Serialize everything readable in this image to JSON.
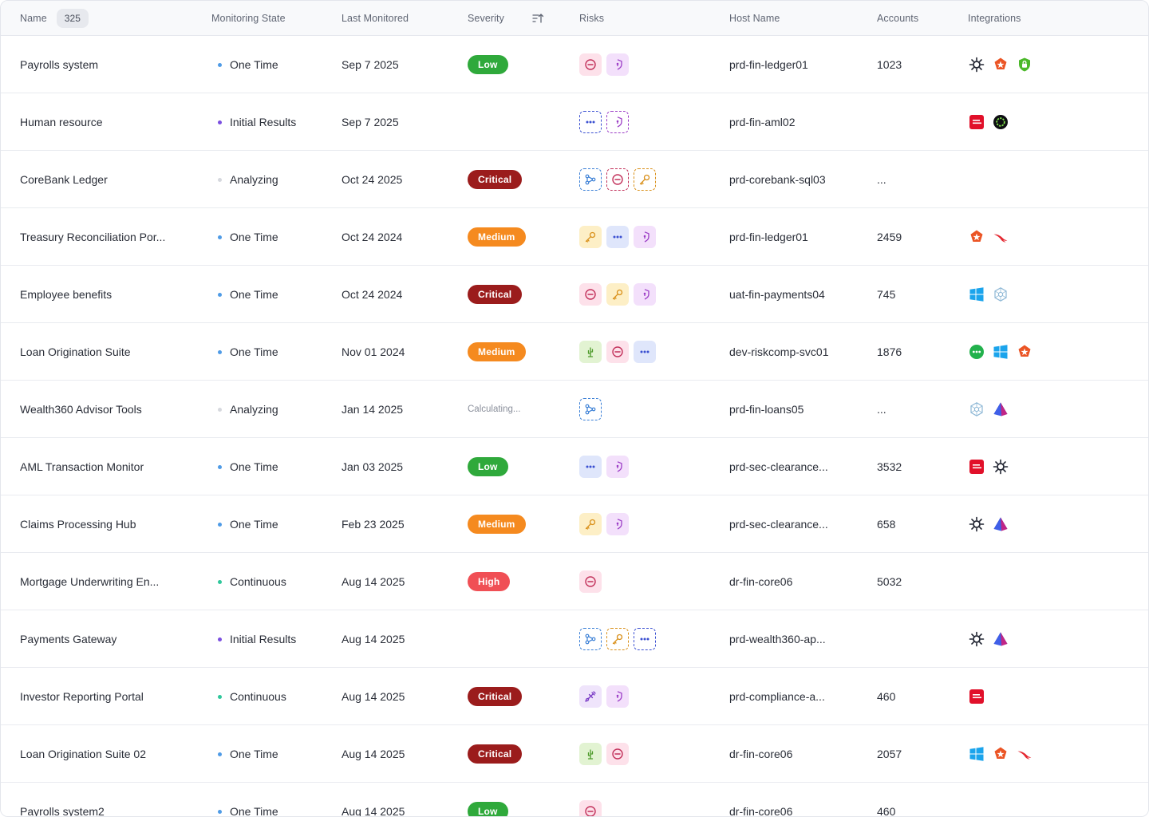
{
  "header": {
    "name": "Name",
    "count": "325",
    "monitoring_state": "Monitoring State",
    "last_monitored": "Last Monitored",
    "severity": "Severity",
    "risks": "Risks",
    "host_name": "Host Name",
    "accounts": "Accounts",
    "integrations": "Integrations"
  },
  "colors": {
    "state_one_time": "#4f9be6",
    "state_initial": "#7b4fe0",
    "state_analyzing": "#d6d8de",
    "state_continuous": "#2fc79b",
    "sev_low": "#2fa93b",
    "sev_medium": "#f58a1f",
    "sev_critical": "#9b1c1c",
    "sev_high": "#f04f55"
  },
  "rows": [
    {
      "name": "Payrolls system",
      "state": "One Time",
      "state_key": "one_time",
      "date": "Sep 7 2025",
      "severity": "Low",
      "sev_key": "low",
      "risks": [
        "blocked",
        "shield"
      ],
      "host": "prd-fin-ledger01",
      "accounts": "1023",
      "integrations": [
        "sunburst",
        "auth0",
        "lock-shield"
      ]
    },
    {
      "name": "Human resource",
      "state": "Initial Results",
      "state_key": "initial",
      "date": "Sep 7 2025",
      "severity": "",
      "sev_key": "",
      "risks": [
        "dots-dashed",
        "shield-dashed"
      ],
      "host": "prd-fin-aml02",
      "accounts": "",
      "integrations": [
        "ping",
        "ring-dark"
      ]
    },
    {
      "name": "CoreBank Ledger",
      "state": "Analyzing",
      "state_key": "analyzing",
      "date": "Oct 24 2025",
      "severity": "Critical",
      "sev_key": "critical",
      "risks": [
        "share-dashed",
        "blocked-dashed",
        "key-dashed"
      ],
      "host": "prd-corebank-sql03",
      "accounts": "...",
      "integrations": []
    },
    {
      "name": "Treasury Reconciliation Por...",
      "state": "One Time",
      "state_key": "one_time",
      "date": "Oct 24 2024",
      "severity": "Medium",
      "sev_key": "medium",
      "risks": [
        "key",
        "dots",
        "shield"
      ],
      "host": "prd-fin-ledger01",
      "accounts": "2459",
      "integrations": [
        "auth0",
        "falcon"
      ]
    },
    {
      "name": "Employee benefits",
      "state": "One Time",
      "state_key": "one_time",
      "date": "Oct 24 2024",
      "severity": "Critical",
      "sev_key": "critical",
      "risks": [
        "blocked",
        "key",
        "shield"
      ],
      "host": "uat-fin-payments04",
      "accounts": "745",
      "integrations": [
        "windows",
        "hex"
      ]
    },
    {
      "name": "Loan Origination Suite",
      "state": "One Time",
      "state_key": "one_time",
      "date": "Nov 01 2024",
      "severity": "Medium",
      "sev_key": "medium",
      "risks": [
        "cactus",
        "blocked",
        "dots"
      ],
      "host": "dev-riskcomp-svc01",
      "accounts": "1876",
      "integrations": [
        "green-dots",
        "windows",
        "auth0"
      ]
    },
    {
      "name": "Wealth360 Advisor Tools",
      "state": "Analyzing",
      "state_key": "analyzing",
      "date": "Jan 14 2025",
      "severity": "Calculating...",
      "sev_key": "calc",
      "risks": [
        "share-dashed"
      ],
      "host": "prd-fin-loans05",
      "accounts": "...",
      "integrations": [
        "hex",
        "prism"
      ]
    },
    {
      "name": "AML Transaction Monitor",
      "state": "One Time",
      "state_key": "one_time",
      "date": "Jan 03 2025",
      "severity": "Low",
      "sev_key": "low",
      "risks": [
        "dots",
        "shield"
      ],
      "host": "prd-sec-clearance...",
      "accounts": "3532",
      "integrations": [
        "ping",
        "sunburst"
      ]
    },
    {
      "name": "Claims Processing Hub",
      "state": "One Time",
      "state_key": "one_time",
      "date": "Feb 23 2025",
      "severity": "Medium",
      "sev_key": "medium",
      "risks": [
        "key",
        "shield"
      ],
      "host": "prd-sec-clearance...",
      "accounts": "658",
      "integrations": [
        "sunburst",
        "prism"
      ]
    },
    {
      "name": "Mortgage Underwriting En...",
      "state": "Continuous",
      "state_key": "continuous",
      "date": "Aug 14 2025",
      "severity": "High",
      "sev_key": "high",
      "risks": [
        "blocked"
      ],
      "host": "dr-fin-core06",
      "accounts": "5032",
      "integrations": []
    },
    {
      "name": "Payments Gateway",
      "state": "Initial Results",
      "state_key": "initial",
      "date": "Aug 14 2025",
      "severity": "",
      "sev_key": "",
      "risks": [
        "share-dashed",
        "key-dashed",
        "dots-dashed"
      ],
      "host": "prd-wealth360-ap...",
      "accounts": "",
      "integrations": [
        "sunburst",
        "prism"
      ]
    },
    {
      "name": "Investor Reporting Portal",
      "state": "Continuous",
      "state_key": "continuous",
      "date": "Aug 14 2025",
      "severity": "Critical",
      "sev_key": "critical",
      "risks": [
        "plug",
        "shield"
      ],
      "host": "prd-compliance-a...",
      "accounts": "460",
      "integrations": [
        "ping"
      ]
    },
    {
      "name": "Loan Origination Suite 02",
      "state": "One Time",
      "state_key": "one_time",
      "date": "Aug 14 2025",
      "severity": "Critical",
      "sev_key": "critical",
      "risks": [
        "cactus",
        "blocked"
      ],
      "host": "dr-fin-core06",
      "accounts": "2057",
      "integrations": [
        "windows",
        "auth0",
        "falcon"
      ]
    },
    {
      "name": "Payrolls system2",
      "state": "One Time",
      "state_key": "one_time",
      "date": "Aug 14 2025",
      "severity": "Low",
      "sev_key": "low",
      "risks": [
        "blocked"
      ],
      "host": "dr-fin-core06",
      "accounts": "460",
      "integrations": []
    }
  ]
}
